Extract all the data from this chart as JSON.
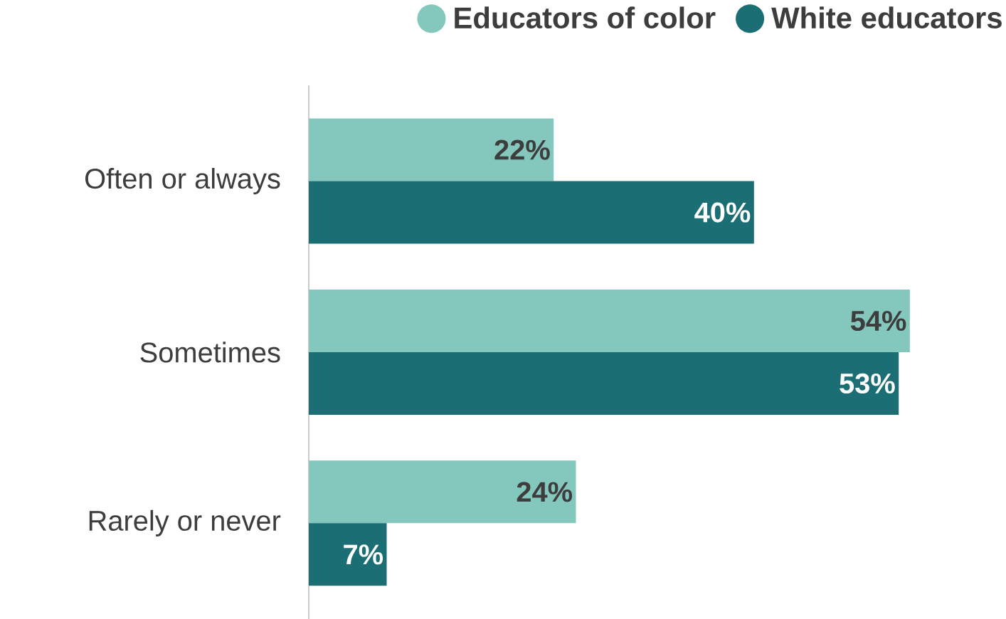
{
  "chart_data": {
    "type": "bar",
    "orientation": "horizontal",
    "legend": "top right",
    "categories": [
      "Often or always",
      "Sometimes",
      "Rarely or never"
    ],
    "series": [
      {
        "name": "Educators of color",
        "color": "#84c8bd",
        "values": [
          22,
          54,
          24
        ],
        "value_labels": [
          "22%",
          "54%",
          "24%"
        ]
      },
      {
        "name": "White educators",
        "color": "#1b6e74",
        "values": [
          40,
          53,
          7
        ],
        "value_labels": [
          "40%",
          "53%",
          "7%"
        ]
      }
    ]
  }
}
